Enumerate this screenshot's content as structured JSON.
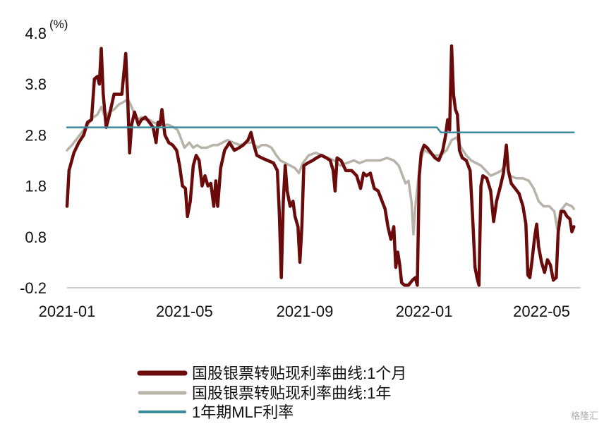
{
  "chart_data": {
    "type": "line",
    "unit_label": "(%)",
    "ylim": [
      -0.2,
      4.8
    ],
    "yticks": [
      "4.8",
      "3.8",
      "2.8",
      "1.8",
      "0.8",
      "-0.2"
    ],
    "ytick_values": [
      4.8,
      3.8,
      2.8,
      1.8,
      0.8,
      -0.2
    ],
    "xlim": [
      "2021-01-01",
      "2022-06-10"
    ],
    "xticks": [
      "2021-01",
      "2021-05",
      "2021-09",
      "2022-01",
      "2022-05"
    ],
    "xtick_dates": [
      "2021-01-01",
      "2021-05-01",
      "2021-09-01",
      "2022-01-01",
      "2022-05-01"
    ],
    "grid": false,
    "legend_position": "bottom",
    "series": [
      {
        "name": "国股银票转贴现利率曲线:1个月",
        "color": "#6b0a0a",
        "points": [
          [
            "2021-01-01",
            1.4
          ],
          [
            "2021-01-03",
            2.1
          ],
          [
            "2021-01-08",
            2.45
          ],
          [
            "2021-01-13",
            2.65
          ],
          [
            "2021-01-18",
            2.8
          ],
          [
            "2021-01-22",
            3.05
          ],
          [
            "2021-01-26",
            3.1
          ],
          [
            "2021-01-29",
            3.9
          ],
          [
            "2021-02-01",
            3.95
          ],
          [
            "2021-02-03",
            3.8
          ],
          [
            "2021-02-05",
            4.5
          ],
          [
            "2021-02-07",
            3.6
          ],
          [
            "2021-02-10",
            2.95
          ],
          [
            "2021-02-14",
            3.25
          ],
          [
            "2021-02-18",
            3.6
          ],
          [
            "2021-02-22",
            3.6
          ],
          [
            "2021-02-26",
            3.6
          ],
          [
            "2021-03-02",
            4.4
          ],
          [
            "2021-03-04",
            3.5
          ],
          [
            "2021-03-06",
            2.45
          ],
          [
            "2021-03-08",
            3.0
          ],
          [
            "2021-03-11",
            3.25
          ],
          [
            "2021-03-15",
            3.0
          ],
          [
            "2021-03-18",
            3.1
          ],
          [
            "2021-03-22",
            3.15
          ],
          [
            "2021-03-26",
            3.05
          ],
          [
            "2021-03-30",
            2.95
          ],
          [
            "2021-04-02",
            2.65
          ],
          [
            "2021-04-04",
            3.05
          ],
          [
            "2021-04-06",
            3.0
          ],
          [
            "2021-04-08",
            3.3
          ],
          [
            "2021-04-11",
            2.8
          ],
          [
            "2021-04-15",
            2.65
          ],
          [
            "2021-04-19",
            2.6
          ],
          [
            "2021-04-23",
            2.5
          ],
          [
            "2021-04-26",
            2.2
          ],
          [
            "2021-04-29",
            1.8
          ],
          [
            "2021-05-02",
            1.75
          ],
          [
            "2021-05-04",
            1.2
          ],
          [
            "2021-05-07",
            1.5
          ],
          [
            "2021-05-10",
            2.2
          ],
          [
            "2021-05-13",
            2.4
          ],
          [
            "2021-05-16",
            2.3
          ],
          [
            "2021-05-19",
            1.8
          ],
          [
            "2021-05-22",
            2.0
          ],
          [
            "2021-05-25",
            1.8
          ],
          [
            "2021-05-28",
            1.85
          ],
          [
            "2021-05-31",
            1.4
          ],
          [
            "2021-06-02",
            1.9
          ],
          [
            "2021-06-04",
            1.4
          ],
          [
            "2021-06-07",
            2.15
          ],
          [
            "2021-06-11",
            2.5
          ],
          [
            "2021-06-16",
            2.65
          ],
          [
            "2021-06-21",
            2.5
          ],
          [
            "2021-06-26",
            2.55
          ],
          [
            "2021-06-30",
            2.6
          ],
          [
            "2021-07-05",
            2.7
          ],
          [
            "2021-07-08",
            2.85
          ],
          [
            "2021-07-11",
            2.6
          ],
          [
            "2021-07-14",
            2.4
          ],
          [
            "2021-07-19",
            2.35
          ],
          [
            "2021-07-25",
            2.3
          ],
          [
            "2021-07-31",
            2.25
          ],
          [
            "2021-08-04",
            2.1
          ],
          [
            "2021-08-06",
            1.25
          ],
          [
            "2021-08-08",
            0.0
          ],
          [
            "2021-08-10",
            1.5
          ],
          [
            "2021-08-12",
            2.2
          ],
          [
            "2021-08-14",
            1.7
          ],
          [
            "2021-08-17",
            1.4
          ],
          [
            "2021-08-20",
            1.5
          ],
          [
            "2021-08-22",
            1.2
          ],
          [
            "2021-08-25",
            1.0
          ],
          [
            "2021-08-27",
            0.3
          ],
          [
            "2021-08-29",
            1.0
          ],
          [
            "2021-08-31",
            2.2
          ],
          [
            "2021-09-04",
            2.25
          ],
          [
            "2021-09-09",
            2.3
          ],
          [
            "2021-09-13",
            2.35
          ],
          [
            "2021-09-18",
            2.4
          ],
          [
            "2021-09-23",
            2.35
          ],
          [
            "2021-09-27",
            2.3
          ],
          [
            "2021-09-30",
            2.1
          ],
          [
            "2021-10-02",
            1.7
          ],
          [
            "2021-10-04",
            2.35
          ],
          [
            "2021-10-08",
            2.3
          ],
          [
            "2021-10-13",
            2.1
          ],
          [
            "2021-10-19",
            2.1
          ],
          [
            "2021-10-24",
            2.0
          ],
          [
            "2021-10-28",
            1.75
          ],
          [
            "2021-10-31",
            2.05
          ],
          [
            "2021-11-03",
            2.0
          ],
          [
            "2021-11-07",
            2.05
          ],
          [
            "2021-11-11",
            1.75
          ],
          [
            "2021-11-15",
            1.7
          ],
          [
            "2021-11-19",
            1.5
          ],
          [
            "2021-11-22",
            1.35
          ],
          [
            "2021-11-25",
            1.0
          ],
          [
            "2021-11-28",
            0.75
          ],
          [
            "2021-12-01",
            1.0
          ],
          [
            "2021-12-03",
            0.2
          ],
          [
            "2021-12-05",
            0.5
          ],
          [
            "2021-12-07",
            0.25
          ],
          [
            "2021-12-09",
            -0.1
          ],
          [
            "2021-12-12",
            -0.15
          ],
          [
            "2021-12-16",
            -0.15
          ],
          [
            "2021-12-20",
            -0.05
          ],
          [
            "2021-12-23",
            0.0
          ],
          [
            "2021-12-25",
            -0.15
          ],
          [
            "2021-12-27",
            2.0
          ],
          [
            "2021-12-29",
            2.45
          ],
          [
            "2022-01-01",
            2.6
          ],
          [
            "2022-01-04",
            2.55
          ],
          [
            "2022-01-08",
            2.45
          ],
          [
            "2022-01-12",
            2.35
          ],
          [
            "2022-01-16",
            2.3
          ],
          [
            "2022-01-20",
            2.5
          ],
          [
            "2022-01-23",
            2.8
          ],
          [
            "2022-01-25",
            3.1
          ],
          [
            "2022-01-27",
            2.9
          ],
          [
            "2022-01-29",
            4.55
          ],
          [
            "2022-01-31",
            3.6
          ],
          [
            "2022-02-02",
            3.3
          ],
          [
            "2022-02-04",
            3.2
          ],
          [
            "2022-02-06",
            2.5
          ],
          [
            "2022-02-09",
            2.35
          ],
          [
            "2022-02-13",
            2.3
          ],
          [
            "2022-02-17",
            2.1
          ],
          [
            "2022-02-20",
            1.0
          ],
          [
            "2022-02-22",
            0.2
          ],
          [
            "2022-02-24",
            0.0
          ],
          [
            "2022-02-26",
            -0.15
          ],
          [
            "2022-02-28",
            1.8
          ],
          [
            "2022-03-02",
            2.0
          ],
          [
            "2022-03-06",
            1.95
          ],
          [
            "2022-03-10",
            1.7
          ],
          [
            "2022-03-13",
            1.1
          ],
          [
            "2022-03-16",
            1.5
          ],
          [
            "2022-03-20",
            1.8
          ],
          [
            "2022-03-23",
            2.05
          ],
          [
            "2022-03-26",
            2.6
          ],
          [
            "2022-03-28",
            2.1
          ],
          [
            "2022-03-31",
            1.85
          ],
          [
            "2022-04-04",
            1.75
          ],
          [
            "2022-04-08",
            1.65
          ],
          [
            "2022-04-12",
            1.4
          ],
          [
            "2022-04-15",
            1.05
          ],
          [
            "2022-04-17",
            0.05
          ],
          [
            "2022-04-19",
            0.0
          ],
          [
            "2022-04-21",
            0.3
          ],
          [
            "2022-04-24",
            0.8
          ],
          [
            "2022-04-26",
            1.05
          ],
          [
            "2022-04-28",
            0.6
          ],
          [
            "2022-05-01",
            0.3
          ],
          [
            "2022-05-04",
            0.1
          ],
          [
            "2022-05-07",
            0.35
          ],
          [
            "2022-05-10",
            0.25
          ],
          [
            "2022-05-13",
            -0.05
          ],
          [
            "2022-05-16",
            0.0
          ],
          [
            "2022-05-18",
            0.9
          ],
          [
            "2022-05-21",
            1.3
          ],
          [
            "2022-05-24",
            1.3
          ],
          [
            "2022-05-27",
            1.2
          ],
          [
            "2022-05-30",
            1.15
          ],
          [
            "2022-06-01",
            0.9
          ],
          [
            "2022-06-03",
            1.0
          ]
        ]
      },
      {
        "name": "国股银票转贴现利率曲线:1年",
        "color": "#b8b3a8",
        "points": [
          [
            "2021-01-01",
            2.5
          ],
          [
            "2021-01-06",
            2.6
          ],
          [
            "2021-01-12",
            2.75
          ],
          [
            "2021-01-18",
            2.9
          ],
          [
            "2021-01-24",
            3.05
          ],
          [
            "2021-01-28",
            3.15
          ],
          [
            "2021-02-01",
            3.2
          ],
          [
            "2021-02-05",
            3.35
          ],
          [
            "2021-02-09",
            3.15
          ],
          [
            "2021-02-13",
            3.25
          ],
          [
            "2021-02-18",
            3.3
          ],
          [
            "2021-02-23",
            3.4
          ],
          [
            "2021-02-28",
            3.45
          ],
          [
            "2021-03-04",
            3.5
          ],
          [
            "2021-03-07",
            3.4
          ],
          [
            "2021-03-10",
            3.25
          ],
          [
            "2021-03-14",
            3.1
          ],
          [
            "2021-03-18",
            3.15
          ],
          [
            "2021-03-22",
            3.1
          ],
          [
            "2021-03-26",
            3.1
          ],
          [
            "2021-03-30",
            3.05
          ],
          [
            "2021-04-05",
            3.0
          ],
          [
            "2021-04-10",
            3.0
          ],
          [
            "2021-04-15",
            3.0
          ],
          [
            "2021-04-20",
            2.95
          ],
          [
            "2021-04-24",
            2.9
          ],
          [
            "2021-04-27",
            2.75
          ],
          [
            "2021-05-01",
            2.55
          ],
          [
            "2021-05-06",
            2.65
          ],
          [
            "2021-05-10",
            2.55
          ],
          [
            "2021-05-14",
            2.6
          ],
          [
            "2021-05-18",
            2.55
          ],
          [
            "2021-05-24",
            2.55
          ],
          [
            "2021-05-30",
            2.6
          ],
          [
            "2021-06-04",
            2.6
          ],
          [
            "2021-06-09",
            2.65
          ],
          [
            "2021-06-14",
            2.7
          ],
          [
            "2021-06-20",
            2.65
          ],
          [
            "2021-06-27",
            2.6
          ],
          [
            "2021-07-03",
            2.65
          ],
          [
            "2021-07-09",
            2.65
          ],
          [
            "2021-07-15",
            2.55
          ],
          [
            "2021-07-19",
            2.6
          ],
          [
            "2021-07-24",
            2.6
          ],
          [
            "2021-07-29",
            2.55
          ],
          [
            "2021-08-03",
            2.4
          ],
          [
            "2021-08-07",
            2.3
          ],
          [
            "2021-08-12",
            2.25
          ],
          [
            "2021-08-17",
            2.2
          ],
          [
            "2021-08-22",
            2.15
          ],
          [
            "2021-08-26",
            2.05
          ],
          [
            "2021-08-30",
            2.25
          ],
          [
            "2021-09-05",
            2.4
          ],
          [
            "2021-09-12",
            2.45
          ],
          [
            "2021-09-19",
            2.4
          ],
          [
            "2021-09-25",
            2.35
          ],
          [
            "2021-10-01",
            2.3
          ],
          [
            "2021-10-07",
            2.2
          ],
          [
            "2021-10-14",
            2.25
          ],
          [
            "2021-10-21",
            2.3
          ],
          [
            "2021-10-27",
            2.25
          ],
          [
            "2021-11-03",
            2.3
          ],
          [
            "2021-11-10",
            2.3
          ],
          [
            "2021-11-17",
            2.3
          ],
          [
            "2021-11-24",
            2.35
          ],
          [
            "2021-12-01",
            2.3
          ],
          [
            "2021-12-06",
            2.2
          ],
          [
            "2021-12-10",
            2.0
          ],
          [
            "2021-12-13",
            1.85
          ],
          [
            "2021-12-16",
            1.9
          ],
          [
            "2021-12-19",
            1.5
          ],
          [
            "2021-12-21",
            0.85
          ],
          [
            "2021-12-23",
            1.4
          ],
          [
            "2021-12-25",
            1.75
          ],
          [
            "2021-12-28",
            2.3
          ],
          [
            "2022-01-01",
            2.5
          ],
          [
            "2022-01-06",
            2.45
          ],
          [
            "2022-01-12",
            2.4
          ],
          [
            "2022-01-18",
            2.4
          ],
          [
            "2022-01-24",
            2.5
          ],
          [
            "2022-01-29",
            2.7
          ],
          [
            "2022-02-03",
            2.75
          ],
          [
            "2022-02-08",
            2.55
          ],
          [
            "2022-02-13",
            2.4
          ],
          [
            "2022-02-18",
            2.3
          ],
          [
            "2022-02-23",
            2.25
          ],
          [
            "2022-02-28",
            2.2
          ],
          [
            "2022-03-05",
            2.1
          ],
          [
            "2022-03-10",
            2.0
          ],
          [
            "2022-03-16",
            2.05
          ],
          [
            "2022-03-21",
            2.1
          ],
          [
            "2022-03-26",
            2.25
          ],
          [
            "2022-03-30",
            2.0
          ],
          [
            "2022-04-05",
            1.95
          ],
          [
            "2022-04-12",
            1.95
          ],
          [
            "2022-04-18",
            1.9
          ],
          [
            "2022-04-23",
            1.75
          ],
          [
            "2022-04-28",
            1.5
          ],
          [
            "2022-05-03",
            1.4
          ],
          [
            "2022-05-09",
            1.4
          ],
          [
            "2022-05-14",
            1.3
          ],
          [
            "2022-05-17",
            0.95
          ],
          [
            "2022-05-20",
            1.3
          ],
          [
            "2022-05-26",
            1.45
          ],
          [
            "2022-06-01",
            1.4
          ],
          [
            "2022-06-03",
            1.35
          ]
        ]
      },
      {
        "name": "1年期MLF利率",
        "color": "#3d8a9c",
        "points": [
          [
            "2021-01-01",
            2.95
          ],
          [
            "2022-01-14",
            2.95
          ],
          [
            "2022-01-18",
            2.85
          ],
          [
            "2022-06-03",
            2.85
          ]
        ]
      }
    ]
  },
  "watermark": "格隆汇"
}
